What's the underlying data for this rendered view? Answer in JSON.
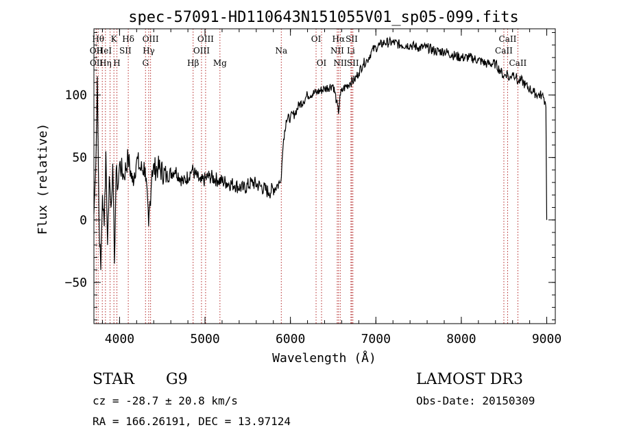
{
  "chart_data": {
    "type": "line",
    "title": "spec-57091-HD110643N151055V01_sp05-099.fits",
    "xlabel": "Wavelength (Å)",
    "ylabel": "Flux (relative)",
    "xlim": [
      3700,
      9100
    ],
    "ylim": [
      -83,
      153
    ],
    "x_ticks": [
      4000,
      5000,
      6000,
      7000,
      8000,
      9000
    ],
    "y_ticks": [
      -50,
      0,
      50,
      100
    ],
    "grid": false,
    "series": [
      {
        "x": [
          3700,
          3720,
          3740,
          3760,
          3780,
          3800,
          3820,
          3840,
          3860,
          3880,
          3900,
          3920,
          3940,
          3960,
          3980,
          4000,
          4050,
          4100,
          4150,
          4200,
          4250,
          4300,
          4340,
          4380,
          4450,
          4550,
          4650,
          4750,
          4850,
          4950,
          5050,
          5150,
          5250,
          5350,
          5450,
          5550,
          5650,
          5750,
          5850,
          5880,
          5900,
          5920,
          5950,
          6000,
          6050,
          6100,
          6150,
          6200,
          6300,
          6400,
          6500,
          6540,
          6562,
          6580,
          6620,
          6700,
          6750,
          6800,
          6850,
          6900,
          6950,
          7000,
          7050,
          7100,
          7200,
          7300,
          7400,
          7500,
          7600,
          7700,
          7800,
          7900,
          8000,
          8100,
          8200,
          8300,
          8400,
          8450,
          8500,
          8540,
          8560,
          8600,
          8640,
          8662,
          8700,
          8750,
          8800,
          8850,
          8900,
          8940,
          8960,
          8980,
          8990,
          9000
        ],
        "y": [
          5,
          40,
          115,
          0,
          -40,
          20,
          -5,
          55,
          -20,
          35,
          10,
          45,
          -35,
          40,
          25,
          45,
          35,
          50,
          30,
          48,
          40,
          42,
          -5,
          40,
          42,
          35,
          40,
          30,
          40,
          30,
          35,
          32,
          30,
          28,
          25,
          30,
          27,
          22,
          28,
          30,
          45,
          65,
          80,
          82,
          85,
          92,
          95,
          100,
          102,
          105,
          108,
          95,
          85,
          100,
          105,
          110,
          112,
          118,
          125,
          128,
          135,
          138,
          140,
          142,
          142,
          140,
          140,
          138,
          138,
          135,
          135,
          132,
          130,
          130,
          128,
          125,
          125,
          120,
          115,
          118,
          112,
          118,
          115,
          110,
          112,
          108,
          105,
          102,
          100,
          100,
          98,
          95,
          90,
          0
        ]
      }
    ],
    "annotations": [
      {
        "label": "OII",
        "x": 3727,
        "row": 2
      },
      {
        "label": "OII",
        "x": 3729,
        "row": 3
      },
      {
        "label": "Hθ",
        "x": 3750,
        "row": 1
      },
      {
        "label": "Hη",
        "x": 3835,
        "row": 3
      },
      {
        "label": "HeI",
        "x": 3820,
        "row": 2
      },
      {
        "label": "K",
        "x": 3934,
        "row": 1
      },
      {
        "label": "H",
        "x": 3969,
        "row": 3
      },
      {
        "label": "SII",
        "x": 4068,
        "row": 2
      },
      {
        "label": "Hδ",
        "x": 4102,
        "row": 1
      },
      {
        "label": "OIII",
        "x": 4363,
        "row": 1
      },
      {
        "label": "Hγ",
        "x": 4341,
        "row": 2
      },
      {
        "label": "G",
        "x": 4304,
        "row": 3
      },
      {
        "label": "Hβ",
        "x": 4861,
        "row": 3
      },
      {
        "label": "OIII",
        "x": 5007,
        "row": 1
      },
      {
        "label": "OIII",
        "x": 4959,
        "row": 2
      },
      {
        "label": "Mg",
        "x": 5175,
        "row": 3
      },
      {
        "label": "Na",
        "x": 5893,
        "row": 2
      },
      {
        "label": "OI",
        "x": 6300,
        "row": 1
      },
      {
        "label": "OI",
        "x": 6364,
        "row": 3
      },
      {
        "label": "Hα",
        "x": 6563,
        "row": 1
      },
      {
        "label": "NII",
        "x": 6548,
        "row": 2
      },
      {
        "label": "NII",
        "x": 6583,
        "row": 3
      },
      {
        "label": "SII",
        "x": 6717,
        "row": 1
      },
      {
        "label": "Li",
        "x": 6708,
        "row": 2
      },
      {
        "label": "SII",
        "x": 6731,
        "row": 3
      },
      {
        "label": "CaII",
        "x": 8542,
        "row": 1
      },
      {
        "label": "CaII",
        "x": 8498,
        "row": 2
      },
      {
        "label": "CaII",
        "x": 8662,
        "row": 3
      }
    ],
    "marker_lines": [
      3727,
      3750,
      3798,
      3835,
      3889,
      3934,
      3969,
      4102,
      4304,
      4341,
      4363,
      4861,
      4959,
      5007,
      5175,
      5893,
      6300,
      6364,
      6548,
      6563,
      6583,
      6708,
      6717,
      6731,
      8498,
      8542,
      8662
    ]
  },
  "info": {
    "object_type": "STAR",
    "spectral_class": "G9",
    "survey": "LAMOST DR3",
    "cz": "cz = -28.7 ± 20.8 km/s",
    "obs_date": "Obs-Date: 20150309",
    "coords": "RA = 166.26191, DEC =  13.97124"
  },
  "colors": {
    "spectrum": "#000000",
    "marker_line": "#b22222",
    "axes": "#000000"
  }
}
